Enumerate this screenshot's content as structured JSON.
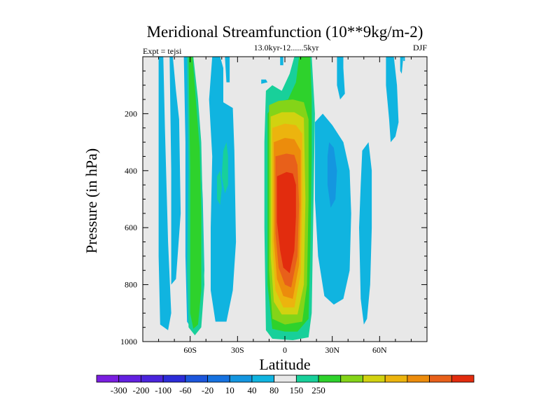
{
  "chart_data": {
    "type": "heatmap",
    "title": "Meridional Streamfunction (10**9kg/m-2)",
    "subtitle_left": "Expt = tejsi",
    "subtitle_center": "13.0kyr-12......5kyr",
    "subtitle_right": "DJF",
    "xlabel": "Latitude",
    "ylabel": "Pressure (in hPa)",
    "xlim": [
      -90,
      90
    ],
    "ylim": [
      0,
      1000
    ],
    "x_ticks": [
      {
        "value": -60,
        "label": "60S"
      },
      {
        "value": -30,
        "label": "30S"
      },
      {
        "value": 0,
        "label": "0"
      },
      {
        "value": 30,
        "label": "30N"
      },
      {
        "value": 60,
        "label": "60N"
      }
    ],
    "y_ticks": [
      {
        "value": 200,
        "label": "200"
      },
      {
        "value": 400,
        "label": "400"
      },
      {
        "value": 600,
        "label": "600"
      },
      {
        "value": 800,
        "label": "800"
      },
      {
        "value": 1000,
        "label": "1000"
      }
    ],
    "background_color": "#e8e8e8",
    "colorbar": {
      "colors": [
        "#7a1ee0",
        "#6220e0",
        "#4a24dc",
        "#2c2cd8",
        "#1c56dc",
        "#1672e0",
        "#1496e0",
        "#10b4e0",
        "#e8e8e8",
        "#18d09a",
        "#2ed22c",
        "#84d418",
        "#d2d210",
        "#ecb40e",
        "#ec8c0c",
        "#e8601a",
        "#e22c0e"
      ],
      "labels": [
        "-300",
        "-200",
        "-100",
        "-60",
        "-20",
        "10",
        "40",
        "80",
        "150",
        "250"
      ]
    },
    "level_colors": {
      "c_neg3": "#1c56dc",
      "c_neg2": "#1496e0",
      "c_neg1": "#10b4e0",
      "c_pos1": "#18d09a",
      "c_pos2": "#2ed22c",
      "c_pos3": "#84d418",
      "c_pos4": "#d2d210",
      "c_pos5": "#ecb40e",
      "c_pos6": "#ec8c0c",
      "c_pos7": "#e8601a",
      "c_pos8": "#e22c0e"
    },
    "contour_regions": [
      {
        "level": "c_neg1",
        "points": [
          [
            -80,
            0
          ],
          [
            -77,
            0
          ],
          [
            -76,
            250
          ],
          [
            -74,
            650
          ],
          [
            -72,
            900
          ],
          [
            -74,
            960
          ],
          [
            -79,
            940
          ],
          [
            -80,
            700
          ]
        ]
      },
      {
        "level": "c_neg1",
        "points": [
          [
            -73,
            0
          ],
          [
            -71,
            0
          ],
          [
            -69,
            120
          ],
          [
            -67,
            220
          ],
          [
            -66,
            550
          ],
          [
            -69,
            780
          ],
          [
            -72,
            800
          ],
          [
            -72,
            400
          ]
        ]
      },
      {
        "level": "c_neg1",
        "points": [
          [
            -64,
            0
          ],
          [
            -59,
            0
          ],
          [
            -56,
            120
          ],
          [
            -54,
            250
          ],
          [
            -52,
            500
          ],
          [
            -51,
            750
          ],
          [
            -53,
            930
          ],
          [
            -57,
            975
          ],
          [
            -62,
            930
          ],
          [
            -63,
            700
          ],
          [
            -63,
            300
          ]
        ]
      },
      {
        "level": "c_pos1",
        "points": [
          [
            -62,
            0
          ],
          [
            -58,
            0
          ],
          [
            -55,
            150
          ],
          [
            -53,
            300
          ],
          [
            -52,
            550
          ],
          [
            -51,
            800
          ],
          [
            -53,
            950
          ],
          [
            -57,
            978
          ],
          [
            -61,
            950
          ],
          [
            -62,
            750
          ],
          [
            -61,
            400
          ]
        ]
      },
      {
        "level": "c_pos2",
        "points": [
          [
            -61,
            0
          ],
          [
            -58.5,
            0
          ],
          [
            -56,
            180
          ],
          [
            -54,
            320
          ],
          [
            -53,
            550
          ],
          [
            -53,
            820
          ],
          [
            -55,
            940
          ],
          [
            -58,
            955
          ],
          [
            -60,
            900
          ],
          [
            -60,
            700
          ],
          [
            -60,
            400
          ]
        ]
      },
      {
        "level": "c_neg1",
        "points": [
          [
            -46,
            0
          ],
          [
            -41,
            0
          ],
          [
            -39,
            40
          ],
          [
            -39,
            160
          ],
          [
            -33,
            180
          ],
          [
            -32,
            330
          ],
          [
            -31,
            650
          ],
          [
            -33,
            820
          ],
          [
            -37,
            930
          ],
          [
            -44,
            930
          ],
          [
            -47,
            820
          ],
          [
            -47,
            600
          ],
          [
            -46,
            350
          ],
          [
            -48,
            150
          ]
        ]
      },
      {
        "level": "c_neg1",
        "points": [
          [
            -38,
            0
          ],
          [
            -35,
            0
          ],
          [
            -35,
            90
          ],
          [
            -37,
            90
          ]
        ]
      },
      {
        "level": "c_neg1",
        "points": [
          [
            -3,
            0
          ],
          [
            -1,
            0
          ],
          [
            -1,
            30
          ],
          [
            -3,
            30
          ]
        ]
      },
      {
        "level": "c_neg1",
        "points": [
          [
            -15,
            80
          ],
          [
            -12,
            80
          ],
          [
            -11,
            90
          ],
          [
            -15,
            95
          ]
        ]
      },
      {
        "level": "c_pos1",
        "points": [
          [
            6,
            0
          ],
          [
            17,
            0
          ],
          [
            18,
            100
          ],
          [
            19,
            200
          ],
          [
            18,
            550
          ],
          [
            17,
            900
          ],
          [
            15,
            985
          ],
          [
            5,
            995
          ],
          [
            -8,
            990
          ],
          [
            -12,
            960
          ],
          [
            -13,
            600
          ],
          [
            -13,
            300
          ],
          [
            -12,
            120
          ],
          [
            -8,
            100
          ],
          [
            -2,
            120
          ],
          [
            3,
            60
          ]
        ]
      },
      {
        "level": "c_pos2",
        "points": [
          [
            9,
            0
          ],
          [
            16,
            0
          ],
          [
            17,
            150
          ],
          [
            17,
            350
          ],
          [
            16,
            700
          ],
          [
            15,
            920
          ],
          [
            8,
            965
          ],
          [
            0,
            965
          ],
          [
            -8,
            955
          ],
          [
            -11,
            800
          ],
          [
            -11,
            500
          ],
          [
            -11,
            200
          ],
          [
            -6,
            160
          ],
          [
            2,
            150
          ],
          [
            7,
            90
          ]
        ]
      },
      {
        "level": "c_pos3",
        "points": [
          [
            -10,
            170
          ],
          [
            -4,
            155
          ],
          [
            5,
            150
          ],
          [
            12,
            160
          ],
          [
            15,
            220
          ],
          [
            15,
            500
          ],
          [
            14,
            800
          ],
          [
            11,
            930
          ],
          [
            0,
            940
          ],
          [
            -8,
            920
          ],
          [
            -10,
            750
          ],
          [
            -10,
            400
          ]
        ]
      },
      {
        "level": "c_pos4",
        "points": [
          [
            -9,
            210
          ],
          [
            -2,
            195
          ],
          [
            6,
            195
          ],
          [
            12,
            215
          ],
          [
            13,
            500
          ],
          [
            12,
            800
          ],
          [
            8,
            905
          ],
          [
            -2,
            905
          ],
          [
            -7,
            860
          ],
          [
            -9,
            700
          ],
          [
            -9,
            350
          ]
        ]
      },
      {
        "level": "c_pos5",
        "points": [
          [
            -8,
            250
          ],
          [
            0,
            235
          ],
          [
            7,
            240
          ],
          [
            11,
            270
          ],
          [
            11,
            500
          ],
          [
            10,
            760
          ],
          [
            6,
            880
          ],
          [
            -1,
            880
          ],
          [
            -6,
            820
          ],
          [
            -8,
            650
          ],
          [
            -8,
            350
          ]
        ]
      },
      {
        "level": "c_pos6",
        "points": [
          [
            -7,
            300
          ],
          [
            0,
            285
          ],
          [
            6,
            290
          ],
          [
            10,
            330
          ],
          [
            10,
            520
          ],
          [
            9,
            730
          ],
          [
            5,
            850
          ],
          [
            -1,
            840
          ],
          [
            -5,
            780
          ],
          [
            -7,
            640
          ],
          [
            -7,
            400
          ]
        ]
      },
      {
        "level": "c_pos7",
        "points": [
          [
            -6,
            350
          ],
          [
            1,
            340
          ],
          [
            6,
            345
          ],
          [
            8,
            380
          ],
          [
            9,
            520
          ],
          [
            8,
            700
          ],
          [
            4,
            810
          ],
          [
            0,
            800
          ],
          [
            -4,
            740
          ],
          [
            -6,
            620
          ],
          [
            -6,
            450
          ]
        ]
      },
      {
        "level": "c_pos8",
        "points": [
          [
            -5,
            420
          ],
          [
            1,
            405
          ],
          [
            5,
            410
          ],
          [
            7,
            450
          ],
          [
            7,
            560
          ],
          [
            6,
            680
          ],
          [
            3,
            760
          ],
          [
            -1,
            740
          ],
          [
            -3,
            680
          ],
          [
            -5,
            580
          ]
        ]
      },
      {
        "level": "c_neg1",
        "points": [
          [
            19,
            230
          ],
          [
            24,
            200
          ],
          [
            30,
            240
          ],
          [
            37,
            300
          ],
          [
            41,
            400
          ],
          [
            42,
            550
          ],
          [
            41,
            750
          ],
          [
            37,
            850
          ],
          [
            31,
            870
          ],
          [
            25,
            840
          ],
          [
            21,
            700
          ],
          [
            19,
            500
          ]
        ]
      },
      {
        "level": "c_neg2",
        "points": [
          [
            28,
            300
          ],
          [
            31,
            320
          ],
          [
            33,
            400
          ],
          [
            32,
            500
          ],
          [
            29,
            530
          ],
          [
            27,
            450
          ],
          [
            27,
            350
          ]
        ]
      },
      {
        "level": "c_neg1",
        "points": [
          [
            49,
            330
          ],
          [
            53,
            300
          ],
          [
            55,
            400
          ],
          [
            55,
            600
          ],
          [
            54,
            800
          ],
          [
            52,
            920
          ],
          [
            50,
            940
          ],
          [
            48,
            850
          ],
          [
            47,
            600
          ],
          [
            48,
            450
          ]
        ]
      },
      {
        "level": "c_neg1",
        "points": [
          [
            64,
            0
          ],
          [
            69,
            0
          ],
          [
            71,
            100
          ],
          [
            72,
            230
          ],
          [
            70,
            280
          ],
          [
            67,
            300
          ],
          [
            66,
            220
          ],
          [
            64,
            100
          ]
        ]
      },
      {
        "level": "c_neg1",
        "points": [
          [
            33,
            0
          ],
          [
            37,
            0
          ],
          [
            37,
            40
          ],
          [
            38,
            130
          ],
          [
            35,
            150
          ],
          [
            33,
            100
          ]
        ]
      },
      {
        "level": "c_neg1",
        "points": [
          [
            73,
            0
          ],
          [
            75,
            0
          ],
          [
            74,
            60
          ],
          [
            73,
            50
          ]
        ]
      },
      {
        "level": "c_neg1",
        "points": [
          [
            75,
            0
          ],
          [
            76,
            0
          ],
          [
            76,
            15
          ],
          [
            75,
            15
          ]
        ]
      },
      {
        "level": "c_pos1",
        "points": [
          [
            -39,
            330
          ],
          [
            -37,
            300
          ],
          [
            -36,
            350
          ],
          [
            -36,
            450
          ],
          [
            -38,
            480
          ],
          [
            -40,
            420
          ]
        ]
      },
      {
        "level": "c_pos1",
        "points": [
          [
            -43,
            420
          ],
          [
            -41,
            400
          ],
          [
            -40,
            460
          ],
          [
            -41,
            520
          ],
          [
            -43,
            500
          ]
        ]
      }
    ]
  }
}
